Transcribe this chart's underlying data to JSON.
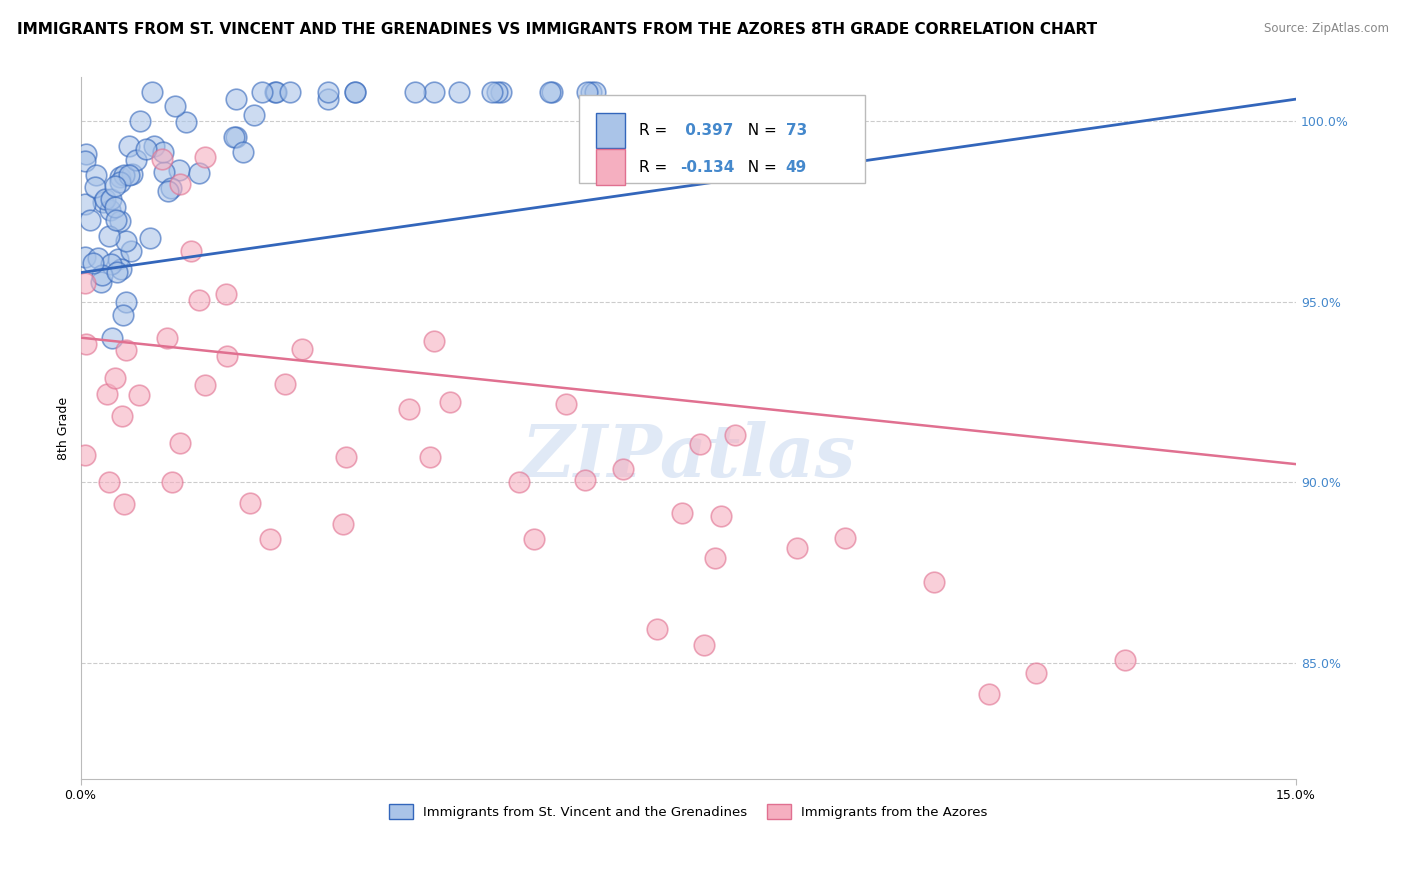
{
  "title": "IMMIGRANTS FROM ST. VINCENT AND THE GRENADINES VS IMMIGRANTS FROM THE AZORES 8TH GRADE CORRELATION CHART",
  "source": "Source: ZipAtlas.com",
  "ylabel": "8th Grade",
  "R_blue": 0.397,
  "N_blue": 73,
  "R_pink": -0.134,
  "N_pink": 49,
  "blue_color": "#aac4e8",
  "pink_color": "#f5afc0",
  "blue_line_color": "#3366bb",
  "pink_line_color": "#e07090",
  "legend_blue_label": "Immigrants from St. Vincent and the Grenadines",
  "legend_pink_label": "Immigrants from the Azores",
  "xmin": 0.0,
  "xmax": 0.15,
  "ymin": 0.818,
  "ymax": 1.012,
  "background_color": "#ffffff",
  "grid_color": "#cccccc",
  "right_tick_color": "#4488cc",
  "title_fontsize": 11,
  "axis_label_fontsize": 9,
  "tick_fontsize": 9,
  "watermark_text": "ZIPatlas",
  "watermark_color": "#c8d8f0",
  "grid_yticks": [
    0.85,
    0.9,
    0.95,
    1.0
  ],
  "grid_labels": [
    "85.0%",
    "90.0%",
    "95.0%",
    "100.0%"
  ]
}
